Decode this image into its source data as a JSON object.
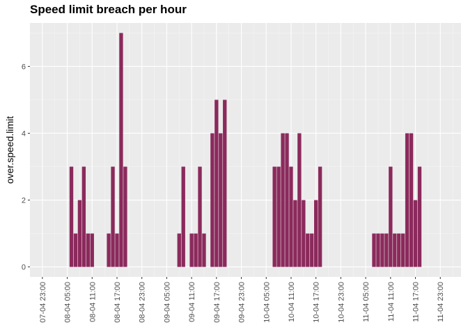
{
  "chart_data": {
    "type": "bar",
    "title": "Speed limit breach per hour",
    "xlabel": "",
    "ylabel": "over.speed.limit",
    "ylim": [
      -0.3,
      7.3
    ],
    "yticks": [
      0,
      2,
      4,
      6
    ],
    "xlim": [
      "07-04 20:00",
      "12-04 04:00"
    ],
    "xticks": [
      "07-04 23:00",
      "08-04 05:00",
      "08-04 11:00",
      "08-04 17:00",
      "08-04 23:00",
      "09-04 05:00",
      "09-04 11:00",
      "09-04 17:00",
      "09-04 23:00",
      "10-04 05:00",
      "10-04 11:00",
      "10-04 17:00",
      "10-04 23:00",
      "11-04 05:00",
      "11-04 11:00",
      "11-04 17:00",
      "11-04 23:00"
    ],
    "bar_color": "#8B2A5C",
    "panel_bg": "#EBEBEB",
    "grid": true,
    "legend": "none",
    "x": [
      "08-04 06:00",
      "08-04 07:00",
      "08-04 08:00",
      "08-04 09:00",
      "08-04 10:00",
      "08-04 11:00",
      "08-04 15:00",
      "08-04 16:00",
      "08-04 17:00",
      "08-04 18:00",
      "08-04 19:00",
      "09-04 08:00",
      "09-04 09:00",
      "09-04 11:00",
      "09-04 12:00",
      "09-04 13:00",
      "09-04 14:00",
      "09-04 16:00",
      "09-04 17:00",
      "09-04 18:00",
      "09-04 19:00",
      "10-04 07:00",
      "10-04 08:00",
      "10-04 09:00",
      "10-04 10:00",
      "10-04 11:00",
      "10-04 12:00",
      "10-04 13:00",
      "10-04 14:00",
      "10-04 15:00",
      "10-04 16:00",
      "10-04 17:00",
      "10-04 18:00",
      "11-04 07:00",
      "11-04 08:00",
      "11-04 09:00",
      "11-04 10:00",
      "11-04 11:00",
      "11-04 12:00",
      "11-04 13:00",
      "11-04 14:00",
      "11-04 15:00",
      "11-04 16:00",
      "11-04 17:00",
      "11-04 18:00"
    ],
    "values": [
      3,
      1,
      2,
      3,
      1,
      1,
      1,
      3,
      1,
      7,
      3,
      1,
      3,
      1,
      1,
      3,
      1,
      4,
      5,
      4,
      5,
      3,
      3,
      4,
      4,
      3,
      2,
      4,
      2,
      1,
      1,
      2,
      3,
      1,
      1,
      1,
      1,
      3,
      1,
      1,
      1,
      4,
      4,
      2,
      3
    ],
    "bar_width_hours": 1
  }
}
